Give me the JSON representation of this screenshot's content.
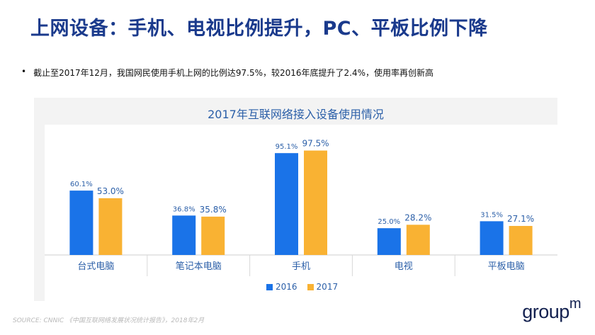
{
  "slide": {
    "title": "上网设备：手机、电视比例提升，PC、平板比例下降",
    "bullet_marker": "•",
    "bullet_text": "截止至2017年12月，我国网民使用手机上网的比例达97.5%，较2016年底提升了2.4%，使用率再创新高",
    "source_text": "SOURCE: CNNIC 《中国互联网络发展状况统计报告》，2018年2月",
    "logo_text": "group",
    "logo_mark": "m"
  },
  "chart_data": {
    "type": "bar",
    "title": "2017年互联网络接入设备使用情况",
    "categories": [
      "台式电脑",
      "笔记本电脑",
      "手机",
      "电视",
      "平板电脑"
    ],
    "series": [
      {
        "name": "2016",
        "values": [
          60.1,
          36.8,
          95.1,
          25.0,
          31.5
        ],
        "labels": [
          "60.1%",
          "36.8%",
          "95.1%",
          "25.0%",
          "31.5%"
        ],
        "color": "#1a73e8"
      },
      {
        "name": "2017",
        "values": [
          53.0,
          35.8,
          97.5,
          28.2,
          27.1
        ],
        "labels": [
          "53.0%",
          "35.8%",
          "97.5%",
          "28.2%",
          "27.1%"
        ],
        "color": "#f9b233"
      }
    ],
    "ylim": [
      0,
      100
    ],
    "grid": false,
    "legend_position": "bottom"
  }
}
